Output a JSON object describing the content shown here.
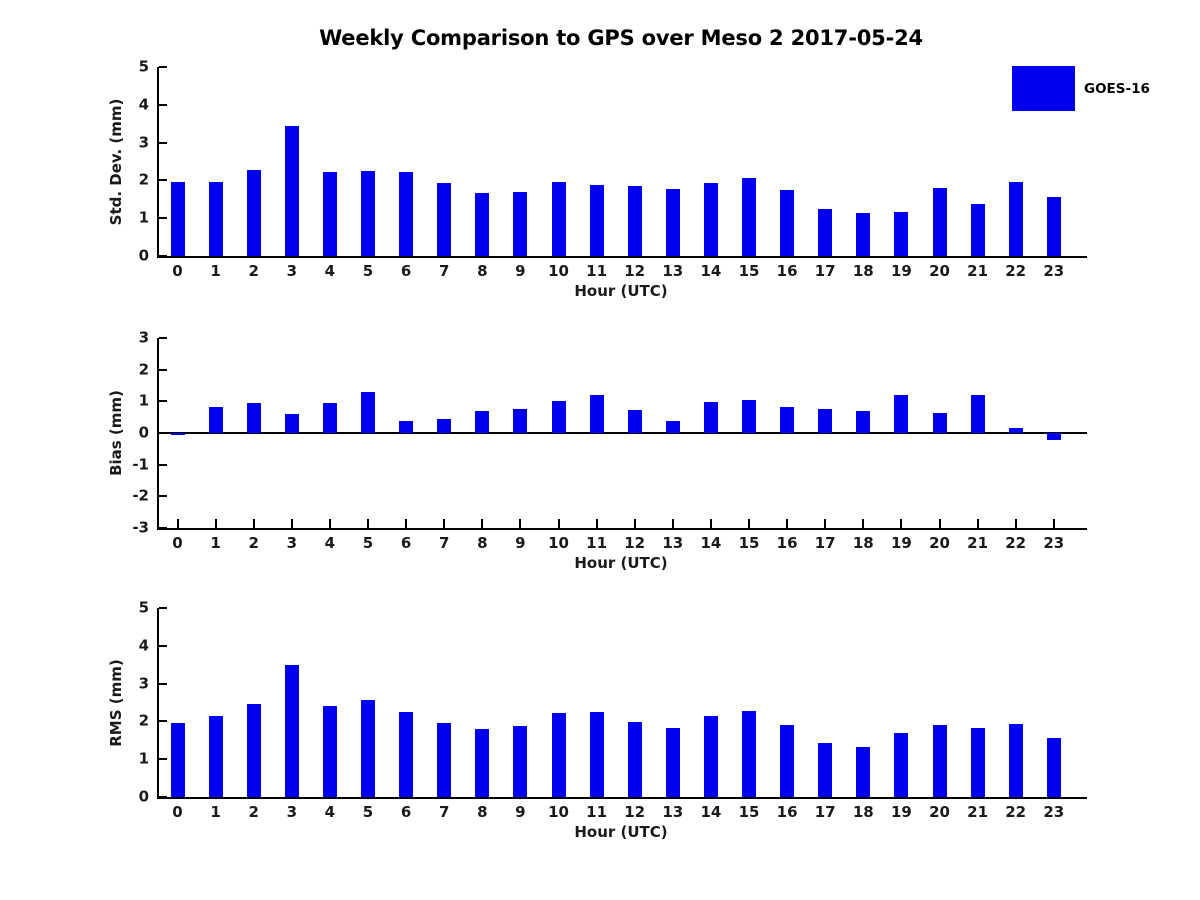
{
  "title": "Weekly Comparison to GPS over Meso 2 2017-05-24",
  "legend": {
    "label": "GOES-16"
  },
  "bar_color": "#0000ee",
  "chart_data": [
    {
      "type": "bar",
      "series_name": "GOES-16",
      "ylabel": "Std. Dev. (mm)",
      "xlabel": "Hour (UTC)",
      "categories": [
        "0",
        "1",
        "2",
        "3",
        "4",
        "5",
        "6",
        "7",
        "8",
        "9",
        "10",
        "11",
        "12",
        "13",
        "14",
        "15",
        "16",
        "17",
        "18",
        "19",
        "20",
        "21",
        "22",
        "23"
      ],
      "values": [
        1.95,
        1.96,
        2.28,
        3.45,
        2.21,
        2.25,
        2.22,
        1.92,
        1.66,
        1.7,
        1.97,
        1.88,
        1.85,
        1.78,
        1.92,
        2.06,
        1.74,
        1.24,
        1.13,
        1.17,
        1.81,
        1.37,
        1.95,
        1.55
      ],
      "ylim": [
        0,
        5
      ],
      "yticks": [
        0,
        1,
        2,
        3,
        4,
        5
      ],
      "grid": false,
      "legend_position": "top-right-outside-bars"
    },
    {
      "type": "bar",
      "series_name": "GOES-16",
      "ylabel": "Bias (mm)",
      "xlabel": "Hour (UTC)",
      "categories": [
        "0",
        "1",
        "2",
        "3",
        "4",
        "5",
        "6",
        "7",
        "8",
        "9",
        "10",
        "11",
        "12",
        "13",
        "14",
        "15",
        "16",
        "17",
        "18",
        "19",
        "20",
        "21",
        "22",
        "23"
      ],
      "values": [
        -0.06,
        0.83,
        0.95,
        0.61,
        0.95,
        1.3,
        0.37,
        0.45,
        0.7,
        0.77,
        1.0,
        1.21,
        0.74,
        0.39,
        0.97,
        1.03,
        0.82,
        0.76,
        0.69,
        1.2,
        0.63,
        1.21,
        0.15,
        -0.21
      ],
      "ylim": [
        -3,
        3
      ],
      "yticks": [
        3,
        2,
        1,
        0,
        -1,
        -2,
        -3
      ],
      "grid": false
    },
    {
      "type": "bar",
      "series_name": "GOES-16",
      "ylabel": "RMS (mm)",
      "xlabel": "Hour (UTC)",
      "categories": [
        "0",
        "1",
        "2",
        "3",
        "4",
        "5",
        "6",
        "7",
        "8",
        "9",
        "10",
        "11",
        "12",
        "13",
        "14",
        "15",
        "16",
        "17",
        "18",
        "19",
        "20",
        "21",
        "22",
        "23"
      ],
      "values": [
        1.95,
        2.14,
        2.47,
        3.49,
        2.4,
        2.57,
        2.25,
        1.96,
        1.79,
        1.87,
        2.21,
        2.24,
        1.99,
        1.82,
        2.15,
        2.28,
        1.9,
        1.44,
        1.33,
        1.68,
        1.9,
        1.83,
        1.94,
        1.56
      ],
      "ylim": [
        0,
        5
      ],
      "yticks": [
        0,
        1,
        2,
        3,
        4,
        5
      ],
      "grid": false
    }
  ]
}
